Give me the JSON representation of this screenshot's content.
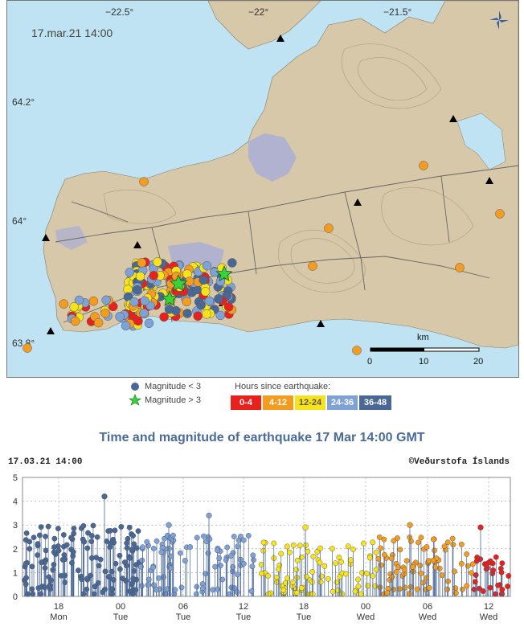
{
  "map": {
    "timestamp": "17.mar.21  14:00",
    "lon_labels": [
      "−22.5°",
      "−22°",
      "−21.5°"
    ],
    "lat_labels": [
      "64.2°",
      "64°",
      "63.8°"
    ],
    "scale": {
      "unit": "km",
      "ticks": [
        "0",
        "10",
        "20"
      ]
    },
    "colors": {
      "sea": "#bfe3f2",
      "land": "#d6c8a8",
      "ice": "#a9aed6",
      "roads": "#666666"
    }
  },
  "legend": {
    "small_label": "Magnitude < 3",
    "large_label": "Magnitude > 3",
    "hours_title": "Hours since earthquake:",
    "hours": [
      {
        "label": "0-4",
        "color": "#e8211c",
        "text_color": "#ffffff"
      },
      {
        "label": "4-12",
        "color": "#f39c1f",
        "text_color": "#ffffff"
      },
      {
        "label": "12-24",
        "color": "#f7e31c",
        "text_color": "#555555"
      },
      {
        "label": "24-36",
        "color": "#7ea1d6",
        "text_color": "#ffffff"
      },
      {
        "label": "36-48",
        "color": "#4a6896",
        "text_color": "#ffffff"
      }
    ]
  },
  "timeline": {
    "title": "Time and magnitude of earthquake   17 Mar 14:00 GMT",
    "date_label": "17.03.21 14:00",
    "credit": "©Veðurstofa Íslands",
    "y_ticks": [
      "0",
      "1",
      "2",
      "3",
      "4",
      "5"
    ],
    "x_ticks": [
      {
        "time": "18",
        "day": "Mon"
      },
      {
        "time": "00",
        "day": "Tue"
      },
      {
        "time": "06",
        "day": "Tue"
      },
      {
        "time": "12",
        "day": "Tue"
      },
      {
        "time": "18",
        "day": "Tue"
      },
      {
        "time": "00",
        "day": "Wed"
      },
      {
        "time": "06",
        "day": "Wed"
      },
      {
        "time": "12",
        "day": "Wed"
      }
    ]
  }
}
